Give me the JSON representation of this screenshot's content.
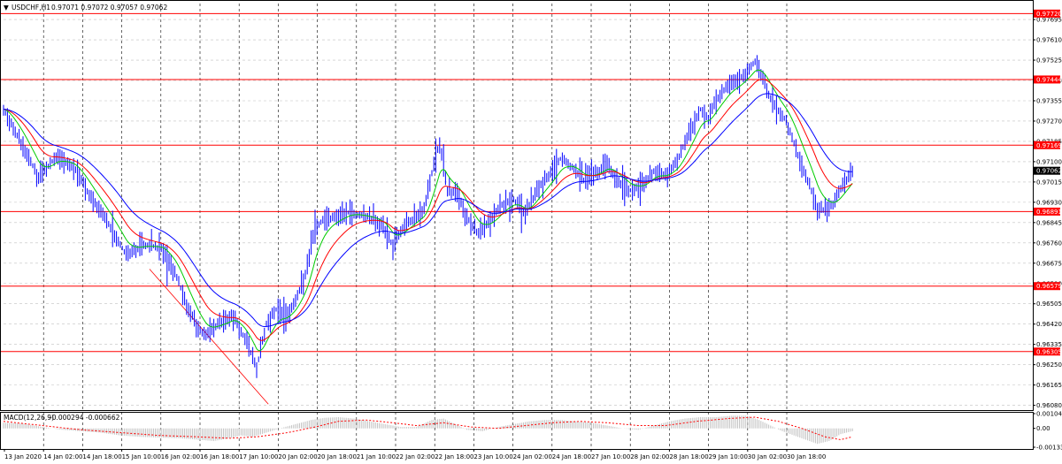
{
  "chart_data": [
    {
      "type": "candlestick",
      "title": "USDCHF,H1",
      "header_values": "0.97071 0.97072 0.97057 0.97062",
      "ylim": [
        0.9606,
        0.97762
      ],
      "y_ticks": [
        0.97695,
        0.9761,
        0.97525,
        0.9744,
        0.97355,
        0.9727,
        0.97185,
        0.971,
        0.97015,
        0.9693,
        0.96845,
        0.9676,
        0.96675,
        0.9659,
        0.96505,
        0.9642,
        0.96335,
        0.9625,
        0.96165,
        0.9608
      ],
      "x_tick_labels": [
        "13 Jan 2020",
        "14 Jan 02:00",
        "14 Jan 18:00",
        "15 Jan 10:00",
        "16 Jan 02:00",
        "16 Jan 18:00",
        "17 Jan 10:00",
        "20 Jan 02:00",
        "20 Jan 18:00",
        "21 Jan 10:00",
        "22 Jan 02:00",
        "22 Jan 18:00",
        "23 Jan 10:00",
        "24 Jan 02:00",
        "24 Jan 18:00",
        "27 Jan 10:00",
        "28 Jan 02:00",
        "28 Jan 18:00",
        "29 Jan 10:00",
        "30 Jan 02:00",
        "30 Jan 18:00"
      ],
      "close_path": [
        [
          0,
          0.9732
        ],
        [
          9,
          0.9718
        ],
        [
          18,
          0.9703
        ],
        [
          27,
          0.9712
        ],
        [
          36,
          0.9708
        ],
        [
          45,
          0.9695
        ],
        [
          54,
          0.9684
        ],
        [
          63,
          0.9671
        ],
        [
          72,
          0.9675
        ],
        [
          81,
          0.9674
        ],
        [
          88,
          0.9664
        ],
        [
          94,
          0.965
        ],
        [
          100,
          0.964
        ],
        [
          104,
          0.9637
        ],
        [
          110,
          0.9642
        ],
        [
          118,
          0.9645
        ],
        [
          124,
          0.9636
        ],
        [
          130,
          0.9624
        ],
        [
          135,
          0.9642
        ],
        [
          140,
          0.9648
        ],
        [
          145,
          0.9645
        ],
        [
          150,
          0.9652
        ],
        [
          155,
          0.9663
        ],
        [
          160,
          0.9683
        ],
        [
          165,
          0.9686
        ],
        [
          171,
          0.9687
        ],
        [
          178,
          0.9689
        ],
        [
          185,
          0.9687
        ],
        [
          190,
          0.9686
        ],
        [
          195,
          0.9683
        ],
        [
          200,
          0.9675
        ],
        [
          205,
          0.9682
        ],
        [
          210,
          0.9686
        ],
        [
          216,
          0.969
        ],
        [
          220,
          0.9705
        ],
        [
          224,
          0.9718
        ],
        [
          228,
          0.9698
        ],
        [
          233,
          0.9697
        ],
        [
          238,
          0.9686
        ],
        [
          244,
          0.968
        ],
        [
          250,
          0.9685
        ],
        [
          256,
          0.9692
        ],
        [
          262,
          0.9694
        ],
        [
          268,
          0.9688
        ],
        [
          274,
          0.9698
        ],
        [
          280,
          0.9704
        ],
        [
          286,
          0.9711
        ],
        [
          292,
          0.9708
        ],
        [
          298,
          0.9702
        ],
        [
          304,
          0.9705
        ],
        [
          310,
          0.9709
        ],
        [
          316,
          0.9702
        ],
        [
          322,
          0.9698
        ],
        [
          328,
          0.97
        ],
        [
          334,
          0.9706
        ],
        [
          340,
          0.9704
        ],
        [
          346,
          0.971
        ],
        [
          352,
          0.9722
        ],
        [
          358,
          0.9732
        ],
        [
          362,
          0.9728
        ],
        [
          366,
          0.9736
        ],
        [
          372,
          0.9742
        ],
        [
          378,
          0.9744
        ],
        [
          383,
          0.9749
        ],
        [
          386,
          0.9752
        ],
        [
          390,
          0.9745
        ],
        [
          394,
          0.9736
        ],
        [
          398,
          0.9731
        ],
        [
          402,
          0.9727
        ],
        [
          406,
          0.9718
        ],
        [
          410,
          0.9708
        ],
        [
          414,
          0.97
        ],
        [
          418,
          0.969
        ],
        [
          422,
          0.969
        ],
        [
          426,
          0.9692
        ],
        [
          431,
          0.97
        ],
        [
          436,
          0.9706
        ]
      ],
      "moving_averages": [
        {
          "color": "#00cc00",
          "period": "fast"
        },
        {
          "color": "#ff0000",
          "period": "medium"
        },
        {
          "color": "#0000ff",
          "period": "slow"
        }
      ],
      "horizontal_levels": [
        0.9772,
        0.97444,
        0.97169,
        0.96891,
        0.96579,
        0.96305
      ],
      "current_price": 0.97062,
      "grid": true
    },
    {
      "type": "histogram",
      "title": "MACD(12,26,9)",
      "header_values": "-0.000294 -0.000662",
      "ylim": [
        -0.001336,
        0.001049
      ],
      "y_ticks": [
        0.001049,
        0.0,
        -0.001336
      ],
      "histogram": [
        [
          0,
          0.0004
        ],
        [
          10,
          0.00035
        ],
        [
          20,
          0.0001
        ],
        [
          30,
          -0.0001
        ],
        [
          40,
          -0.0002
        ],
        [
          50,
          -0.0003
        ],
        [
          60,
          -0.0005
        ],
        [
          70,
          -0.0006
        ],
        [
          80,
          -0.00065
        ],
        [
          90,
          -0.0007
        ],
        [
          100,
          -0.0008
        ],
        [
          108,
          -0.0009
        ],
        [
          116,
          -0.0007
        ],
        [
          122,
          -0.0005
        ],
        [
          128,
          -0.0006
        ],
        [
          135,
          -0.0003
        ],
        [
          142,
          0.0
        ],
        [
          150,
          0.0003
        ],
        [
          158,
          0.0006
        ],
        [
          165,
          0.00075
        ],
        [
          172,
          0.0008
        ],
        [
          180,
          0.0007
        ],
        [
          188,
          0.0005
        ],
        [
          196,
          0.0003
        ],
        [
          204,
          0.0001
        ],
        [
          212,
          0.0001
        ],
        [
          220,
          0.0006
        ],
        [
          226,
          0.0007
        ],
        [
          232,
          0.0003
        ],
        [
          238,
          -0.0001
        ],
        [
          246,
          -0.0002
        ],
        [
          254,
          0.0001
        ],
        [
          262,
          0.0003
        ],
        [
          270,
          0.0005
        ],
        [
          278,
          0.0006
        ],
        [
          286,
          0.0006
        ],
        [
          294,
          0.0005
        ],
        [
          302,
          0.0004
        ],
        [
          310,
          0.0002
        ],
        [
          318,
          0.0
        ],
        [
          326,
          -0.0001
        ],
        [
          334,
          0.0002
        ],
        [
          342,
          0.0005
        ],
        [
          350,
          0.0007
        ],
        [
          358,
          0.0008
        ],
        [
          366,
          0.0008
        ],
        [
          374,
          0.0009
        ],
        [
          382,
          0.0009
        ],
        [
          388,
          0.0006
        ],
        [
          394,
          0.0002
        ],
        [
          400,
          -0.0002
        ],
        [
          406,
          -0.0005
        ],
        [
          412,
          -0.0008
        ],
        [
          418,
          -0.0011
        ],
        [
          424,
          -0.0009
        ],
        [
          430,
          -0.0004
        ],
        [
          436,
          -0.0002
        ]
      ],
      "signal": [
        [
          0,
          0.0005
        ],
        [
          20,
          0.0002
        ],
        [
          40,
          -0.0001
        ],
        [
          60,
          -0.0003
        ],
        [
          80,
          -0.0005
        ],
        [
          100,
          -0.0006
        ],
        [
          116,
          -0.0007
        ],
        [
          130,
          -0.0006
        ],
        [
          146,
          -0.0003
        ],
        [
          160,
          0.0001
        ],
        [
          172,
          0.0005
        ],
        [
          186,
          0.0006
        ],
        [
          200,
          0.0004
        ],
        [
          212,
          0.0002
        ],
        [
          226,
          0.0004
        ],
        [
          240,
          0.0001
        ],
        [
          254,
          0.0
        ],
        [
          268,
          0.0002
        ],
        [
          282,
          0.0004
        ],
        [
          296,
          0.0005
        ],
        [
          310,
          0.0004
        ],
        [
          326,
          0.0002
        ],
        [
          340,
          0.0002
        ],
        [
          356,
          0.0005
        ],
        [
          372,
          0.0007
        ],
        [
          386,
          0.0008
        ],
        [
          398,
          0.0005
        ],
        [
          410,
          0.0
        ],
        [
          422,
          -0.0006
        ],
        [
          430,
          -0.0008
        ],
        [
          436,
          -0.0006
        ]
      ],
      "colors": {
        "histogram": "#c0c0c0",
        "signal": "#ff0000"
      }
    }
  ],
  "toolbar": {
    "dropdown_icon": "triangle-down-icon"
  },
  "colors": {
    "level": "#ff0000",
    "level_label_bg": "#ff0000",
    "price_label_bg": "#000000",
    "grid": "#c0c0c0",
    "candles": "#0000ff",
    "trendline": "#ff0000"
  }
}
